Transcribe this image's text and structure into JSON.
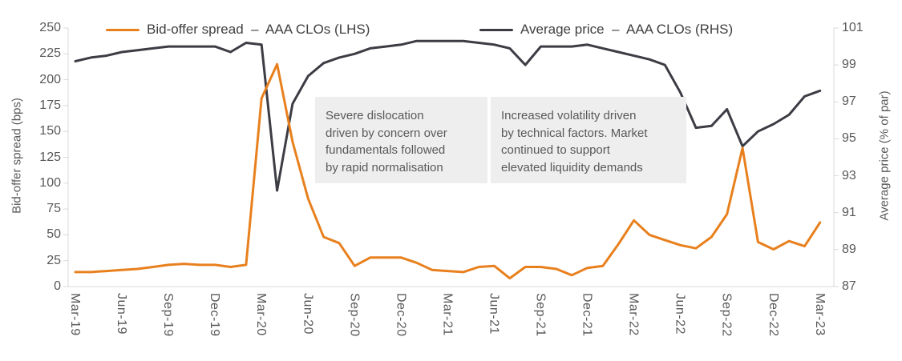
{
  "chart_data": {
    "type": "line",
    "x_axis": {
      "frequency": "monthly",
      "n_points": 49,
      "start": "Mar-19",
      "end": "Mar-23",
      "tick_every_n_points": 3,
      "tick_labels": [
        "Mar-19",
        "Jun-19",
        "Sep-19",
        "Dec-19",
        "Mar-20",
        "Jun-20",
        "Sep-20",
        "Dec-20",
        "Mar-21",
        "Jun-21",
        "Sep-21",
        "Dec-21",
        "Mar-22",
        "Jun-22",
        "Sep-22",
        "Dec-22",
        "Mar-23"
      ]
    },
    "left_axis": {
      "title": "Bid-offer spread (bps)",
      "min": 0,
      "max": 250,
      "ticks": [
        0,
        25,
        50,
        75,
        100,
        125,
        150,
        175,
        200,
        225,
        250
      ]
    },
    "right_axis": {
      "title": "Average price (% of par)",
      "min": 87,
      "max": 101,
      "ticks": [
        87,
        89,
        91,
        93,
        95,
        97,
        99,
        101
      ]
    },
    "series": [
      {
        "name": "Bid-offer spread – AAA CLOs (LHS)",
        "axis": "left",
        "color": "#E8801E",
        "values": [
          14,
          14,
          15,
          16,
          17,
          19,
          21,
          22,
          21,
          21,
          19,
          21,
          182,
          215,
          140,
          85,
          48,
          42,
          20,
          28,
          28,
          28,
          23,
          16,
          15,
          14,
          19,
          20,
          8,
          19,
          19,
          17,
          11,
          18,
          20,
          41,
          64,
          50,
          45,
          40,
          37,
          48,
          70,
          134,
          43,
          36,
          44,
          39,
          62
        ]
      },
      {
        "name": "Average price – AAA CLOs (RHS)",
        "axis": "right",
        "color": "#3C3C44",
        "values": [
          99.2,
          99.4,
          99.5,
          99.7,
          99.8,
          99.9,
          100.0,
          100.0,
          100.0,
          100.0,
          99.7,
          100.2,
          100.1,
          92.2,
          96.9,
          98.4,
          99.1,
          99.4,
          99.6,
          99.9,
          100.0,
          100.1,
          100.3,
          100.3,
          100.3,
          100.3,
          100.2,
          100.1,
          99.9,
          99.0,
          100.0,
          100.0,
          100.0,
          100.1,
          99.9,
          99.7,
          99.5,
          99.3,
          99.0,
          97.5,
          95.6,
          95.7,
          96.6,
          94.6,
          95.4,
          95.8,
          96.3,
          97.3,
          97.6
        ]
      }
    ],
    "legend": [
      {
        "label": "Bid-offer spread  –  AAA CLOs (LHS)",
        "color": "#E8801E"
      },
      {
        "label": "Average price  –  AAA CLOs (RHS)",
        "color": "#3C3C44"
      }
    ],
    "annotations": [
      {
        "text": "Severe dislocation driven by concern over fundamentals followed by rapid normalisation",
        "lines": [
          "Severe dislocation",
          "driven by concern over",
          "fundamentals followed",
          "by rapid normalisation"
        ]
      },
      {
        "text": "Increased volatility driven by technical factors. Market continued to support elevated liquidity demands",
        "lines": [
          "Increased volatility driven",
          "by technical factors. Market",
          "continued to support",
          "elevated liquidity demands"
        ]
      }
    ],
    "style": {
      "axis_line_color": "#D9D9D9",
      "tick_label_color": "#595959",
      "annotation_bg": "#EEEEEE",
      "background": "#FFFFFF",
      "grid": "off",
      "legend_position": "top"
    }
  }
}
